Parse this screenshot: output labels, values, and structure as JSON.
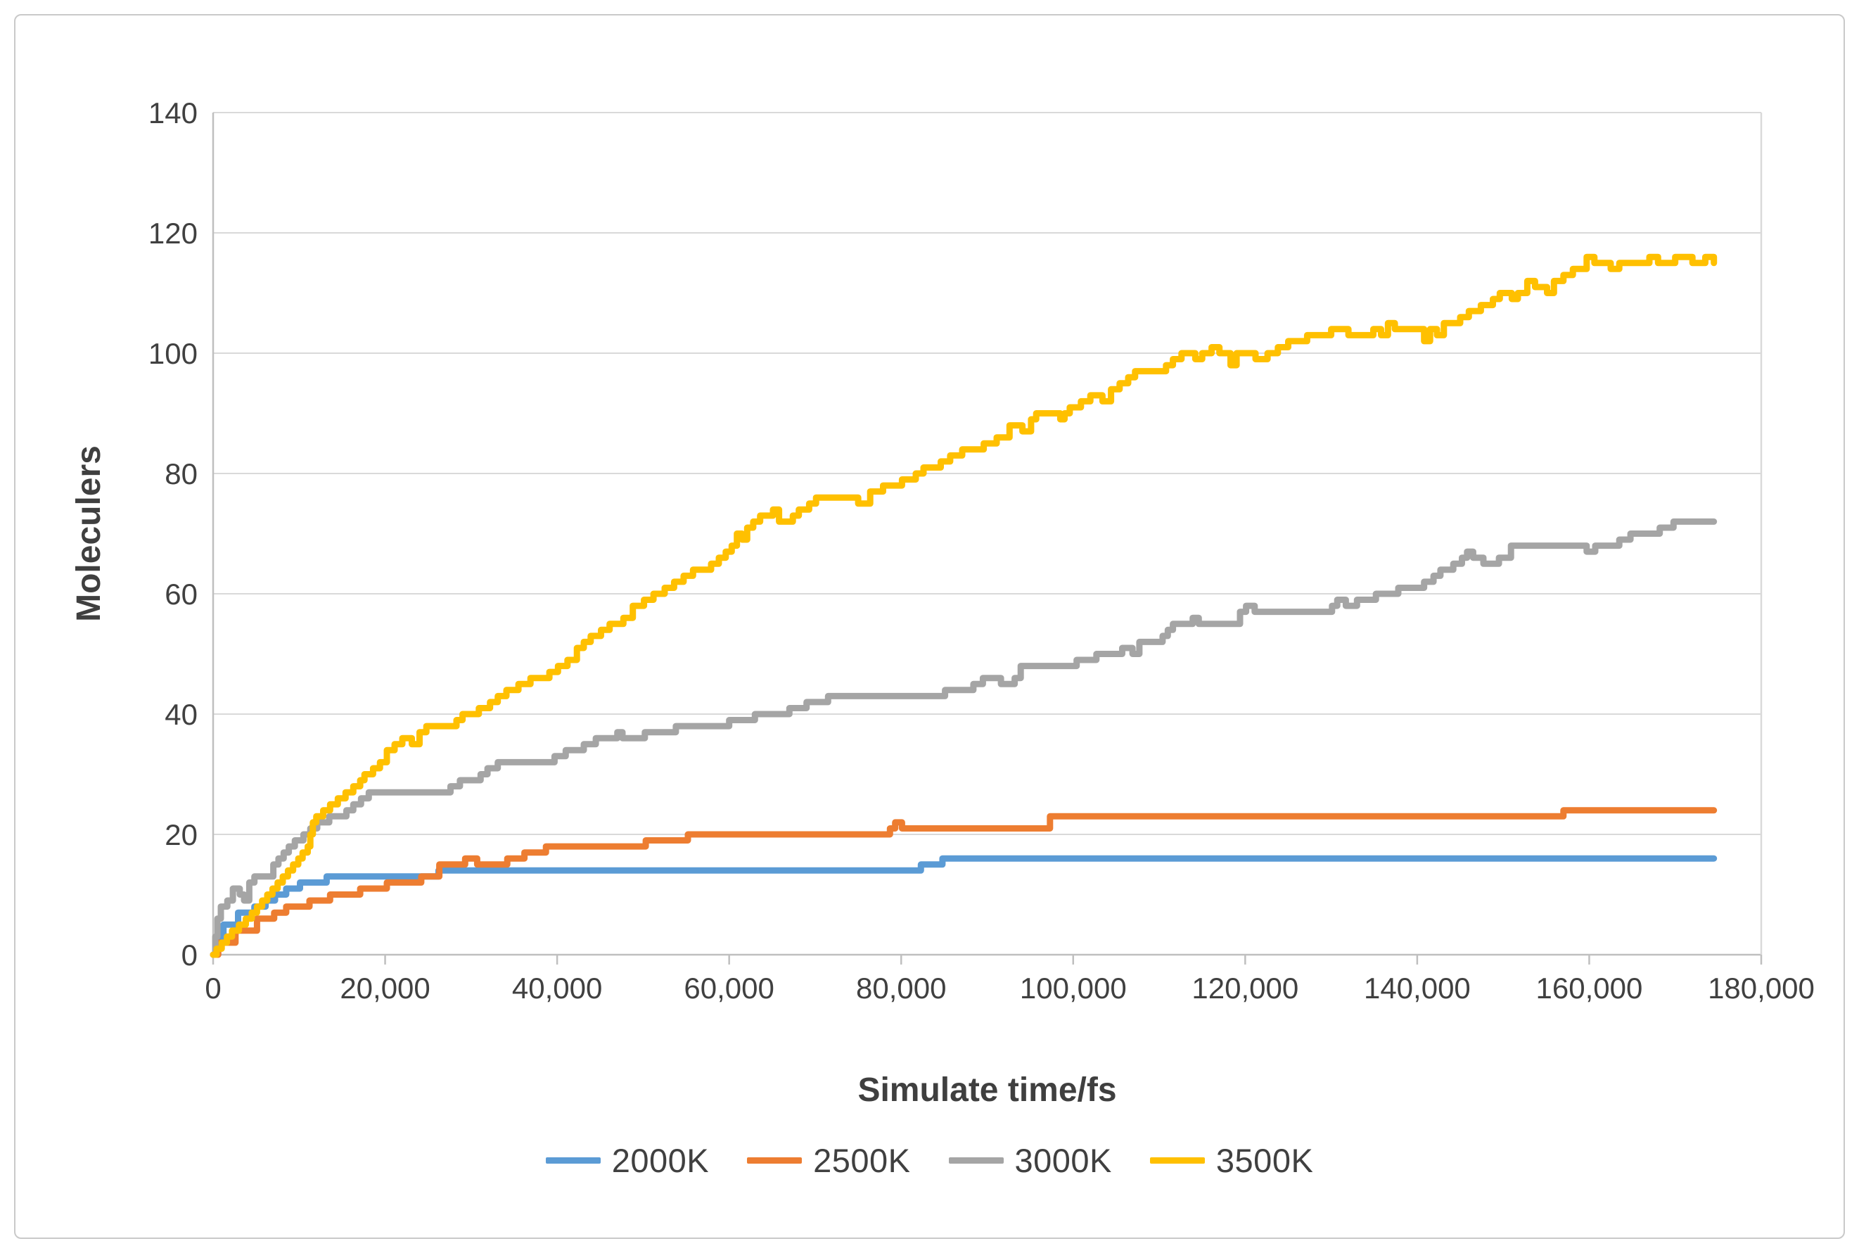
{
  "figure": {
    "background": "#ffffff",
    "frame_border_color": "#c9c9c9"
  },
  "style": {
    "grid_color": "#d9d9d9",
    "axis_color": "#bfbfbf",
    "tick_label_color": "#404040",
    "axis_title_color": "#3f3f3f",
    "line_width": 9
  },
  "chart_data": {
    "type": "line",
    "title": "",
    "xlabel": "Simulate time/fs",
    "ylabel": "Moleculers",
    "xlim": [
      0,
      180000
    ],
    "ylim": [
      0,
      140
    ],
    "grid": "horizontal",
    "legend_position": "bottom",
    "x_ticks": [
      0,
      20000,
      40000,
      60000,
      80000,
      100000,
      120000,
      140000,
      160000,
      180000
    ],
    "x_tick_labels": [
      "0",
      "20,000",
      "40,000",
      "60,000",
      "80,000",
      "100,000",
      "120,000",
      "140,000",
      "160,000",
      "180,000"
    ],
    "y_ticks": [
      0,
      20,
      40,
      60,
      80,
      100,
      120,
      140
    ],
    "y_tick_labels": [
      "0",
      "20",
      "40",
      "60",
      "80",
      "100",
      "120",
      "140"
    ],
    "series": [
      {
        "name": "2000K",
        "color": "#5B9BD5",
        "points": [
          [
            0,
            0
          ],
          [
            400,
            3
          ],
          [
            1200,
            5
          ],
          [
            2900,
            7
          ],
          [
            4800,
            8
          ],
          [
            6100,
            9
          ],
          [
            7200,
            10
          ],
          [
            8500,
            11
          ],
          [
            10100,
            12
          ],
          [
            13200,
            13
          ],
          [
            26200,
            14
          ],
          [
            81500,
            14
          ],
          [
            82300,
            15
          ],
          [
            84800,
            16
          ],
          [
            174500,
            16
          ]
        ]
      },
      {
        "name": "2500K",
        "color": "#ED7D31",
        "points": [
          [
            0,
            0
          ],
          [
            600,
            2
          ],
          [
            2600,
            4
          ],
          [
            5100,
            6
          ],
          [
            7100,
            7
          ],
          [
            8500,
            8
          ],
          [
            11200,
            9
          ],
          [
            13600,
            10
          ],
          [
            17100,
            11
          ],
          [
            20200,
            12
          ],
          [
            24200,
            13
          ],
          [
            26300,
            15
          ],
          [
            29300,
            16
          ],
          [
            30700,
            15
          ],
          [
            34200,
            16
          ],
          [
            36200,
            17
          ],
          [
            38700,
            18
          ],
          [
            50300,
            19
          ],
          [
            55200,
            20
          ],
          [
            78700,
            21
          ],
          [
            79300,
            22
          ],
          [
            80100,
            21
          ],
          [
            97300,
            23
          ],
          [
            157000,
            24
          ],
          [
            174500,
            24
          ]
        ]
      },
      {
        "name": "3000K",
        "color": "#A5A5A5",
        "points": [
          [
            0,
            0
          ],
          [
            250,
            3
          ],
          [
            500,
            6
          ],
          [
            900,
            8
          ],
          [
            1650,
            9
          ],
          [
            2300,
            11
          ],
          [
            3100,
            10
          ],
          [
            3600,
            9
          ],
          [
            4200,
            12
          ],
          [
            4800,
            13
          ],
          [
            6500,
            13
          ],
          [
            7000,
            15
          ],
          [
            7600,
            16
          ],
          [
            8200,
            17
          ],
          [
            8800,
            18
          ],
          [
            9500,
            19
          ],
          [
            10500,
            20
          ],
          [
            11300,
            21
          ],
          [
            12100,
            22
          ],
          [
            13500,
            23
          ],
          [
            15500,
            24
          ],
          [
            16300,
            25
          ],
          [
            17200,
            26
          ],
          [
            18100,
            27
          ],
          [
            26700,
            27
          ],
          [
            27600,
            28
          ],
          [
            28700,
            29
          ],
          [
            31100,
            30
          ],
          [
            31900,
            31
          ],
          [
            33100,
            32
          ],
          [
            39400,
            32
          ],
          [
            39700,
            33
          ],
          [
            41000,
            34
          ],
          [
            43100,
            35
          ],
          [
            44500,
            36
          ],
          [
            47000,
            37
          ],
          [
            47600,
            36
          ],
          [
            50200,
            37
          ],
          [
            53800,
            38
          ],
          [
            58500,
            38
          ],
          [
            60000,
            39
          ],
          [
            63000,
            40
          ],
          [
            65500,
            40
          ],
          [
            67000,
            41
          ],
          [
            69000,
            42
          ],
          [
            71500,
            43
          ],
          [
            83900,
            43
          ],
          [
            85100,
            44
          ],
          [
            88400,
            45
          ],
          [
            89500,
            46
          ],
          [
            91600,
            45
          ],
          [
            93200,
            46
          ],
          [
            93900,
            48
          ],
          [
            99800,
            48
          ],
          [
            100400,
            49
          ],
          [
            102700,
            50
          ],
          [
            105700,
            51
          ],
          [
            106900,
            50
          ],
          [
            107700,
            52
          ],
          [
            110400,
            53
          ],
          [
            111000,
            54
          ],
          [
            111600,
            55
          ],
          [
            113900,
            56
          ],
          [
            114600,
            55
          ],
          [
            119400,
            57
          ],
          [
            120100,
            58
          ],
          [
            121100,
            57
          ],
          [
            129500,
            57
          ],
          [
            130100,
            58
          ],
          [
            130700,
            59
          ],
          [
            131700,
            58
          ],
          [
            133000,
            59
          ],
          [
            135200,
            60
          ],
          [
            137800,
            61
          ],
          [
            140800,
            62
          ],
          [
            141900,
            63
          ],
          [
            142700,
            64
          ],
          [
            144200,
            65
          ],
          [
            145200,
            66
          ],
          [
            145800,
            67
          ],
          [
            146500,
            66
          ],
          [
            147700,
            65
          ],
          [
            149500,
            66
          ],
          [
            150900,
            68
          ],
          [
            158900,
            68
          ],
          [
            159700,
            67
          ],
          [
            160700,
            68
          ],
          [
            163500,
            69
          ],
          [
            164800,
            70
          ],
          [
            167800,
            70
          ],
          [
            168200,
            71
          ],
          [
            169800,
            72
          ],
          [
            174500,
            72
          ]
        ]
      },
      {
        "name": "3500K",
        "color": "#FFC000",
        "points": [
          [
            0,
            0
          ],
          [
            400,
            1
          ],
          [
            1000,
            2
          ],
          [
            1600,
            3
          ],
          [
            2200,
            4
          ],
          [
            3000,
            5
          ],
          [
            3800,
            6
          ],
          [
            4500,
            7
          ],
          [
            5100,
            8
          ],
          [
            5700,
            9
          ],
          [
            6300,
            10
          ],
          [
            6900,
            11
          ],
          [
            7500,
            12
          ],
          [
            8100,
            13
          ],
          [
            8700,
            14
          ],
          [
            9300,
            15
          ],
          [
            9900,
            16
          ],
          [
            10400,
            17
          ],
          [
            11000,
            18
          ],
          [
            11300,
            20
          ],
          [
            11600,
            22
          ],
          [
            12000,
            23
          ],
          [
            12800,
            24
          ],
          [
            13600,
            25
          ],
          [
            14500,
            26
          ],
          [
            15400,
            27
          ],
          [
            16300,
            28
          ],
          [
            17100,
            29
          ],
          [
            17600,
            30
          ],
          [
            18600,
            31
          ],
          [
            19400,
            32
          ],
          [
            20200,
            34
          ],
          [
            21100,
            35
          ],
          [
            22000,
            36
          ],
          [
            23100,
            35
          ],
          [
            24000,
            37
          ],
          [
            24800,
            38
          ],
          [
            27700,
            38
          ],
          [
            28300,
            39
          ],
          [
            29000,
            40
          ],
          [
            30900,
            41
          ],
          [
            32200,
            42
          ],
          [
            33100,
            43
          ],
          [
            34100,
            44
          ],
          [
            35500,
            45
          ],
          [
            36900,
            46
          ],
          [
            39100,
            47
          ],
          [
            40100,
            48
          ],
          [
            41200,
            49
          ],
          [
            42300,
            51
          ],
          [
            43100,
            52
          ],
          [
            43900,
            53
          ],
          [
            45100,
            54
          ],
          [
            46100,
            55
          ],
          [
            47700,
            56
          ],
          [
            48800,
            58
          ],
          [
            50100,
            59
          ],
          [
            51200,
            60
          ],
          [
            52500,
            61
          ],
          [
            53600,
            62
          ],
          [
            54700,
            63
          ],
          [
            55800,
            64
          ],
          [
            57900,
            65
          ],
          [
            58800,
            66
          ],
          [
            59600,
            67
          ],
          [
            60300,
            68
          ],
          [
            60900,
            70
          ],
          [
            61500,
            69
          ],
          [
            62100,
            71
          ],
          [
            62800,
            72
          ],
          [
            63600,
            73
          ],
          [
            65100,
            74
          ],
          [
            65800,
            72
          ],
          [
            67400,
            73
          ],
          [
            68100,
            74
          ],
          [
            69300,
            75
          ],
          [
            70100,
            76
          ],
          [
            74400,
            76
          ],
          [
            75000,
            75
          ],
          [
            76400,
            77
          ],
          [
            77900,
            78
          ],
          [
            80100,
            79
          ],
          [
            81700,
            80
          ],
          [
            82600,
            81
          ],
          [
            84600,
            82
          ],
          [
            85700,
            83
          ],
          [
            87100,
            84
          ],
          [
            88100,
            84
          ],
          [
            89600,
            85
          ],
          [
            91100,
            86
          ],
          [
            92600,
            88
          ],
          [
            94100,
            87
          ],
          [
            95100,
            89
          ],
          [
            95700,
            90
          ],
          [
            98500,
            89
          ],
          [
            99000,
            90
          ],
          [
            99600,
            91
          ],
          [
            100900,
            92
          ],
          [
            102000,
            93
          ],
          [
            103400,
            92
          ],
          [
            104400,
            94
          ],
          [
            105400,
            95
          ],
          [
            106400,
            96
          ],
          [
            107200,
            97
          ],
          [
            110400,
            97
          ],
          [
            110800,
            98
          ],
          [
            111600,
            99
          ],
          [
            112600,
            100
          ],
          [
            114200,
            99
          ],
          [
            115000,
            100
          ],
          [
            116100,
            101
          ],
          [
            117000,
            100
          ],
          [
            118300,
            98
          ],
          [
            119000,
            100
          ],
          [
            120500,
            100
          ],
          [
            121200,
            99
          ],
          [
            122600,
            100
          ],
          [
            123800,
            101
          ],
          [
            125000,
            102
          ],
          [
            127200,
            103
          ],
          [
            129600,
            103
          ],
          [
            130000,
            104
          ],
          [
            132000,
            103
          ],
          [
            134900,
            104
          ],
          [
            135800,
            103
          ],
          [
            136600,
            105
          ],
          [
            137400,
            104
          ],
          [
            140400,
            104
          ],
          [
            140800,
            102
          ],
          [
            141500,
            104
          ],
          [
            142300,
            103
          ],
          [
            143100,
            105
          ],
          [
            145000,
            106
          ],
          [
            146000,
            107
          ],
          [
            147400,
            108
          ],
          [
            148800,
            109
          ],
          [
            149600,
            110
          ],
          [
            151000,
            109
          ],
          [
            151700,
            110
          ],
          [
            152800,
            112
          ],
          [
            153700,
            111
          ],
          [
            155100,
            110
          ],
          [
            155900,
            112
          ],
          [
            157000,
            113
          ],
          [
            158100,
            114
          ],
          [
            159700,
            116
          ],
          [
            160600,
            115
          ],
          [
            162500,
            114
          ],
          [
            163500,
            115
          ],
          [
            167000,
            116
          ],
          [
            168000,
            115
          ],
          [
            170000,
            116
          ],
          [
            172000,
            115
          ],
          [
            173500,
            116
          ],
          [
            174500,
            115
          ]
        ]
      }
    ]
  }
}
